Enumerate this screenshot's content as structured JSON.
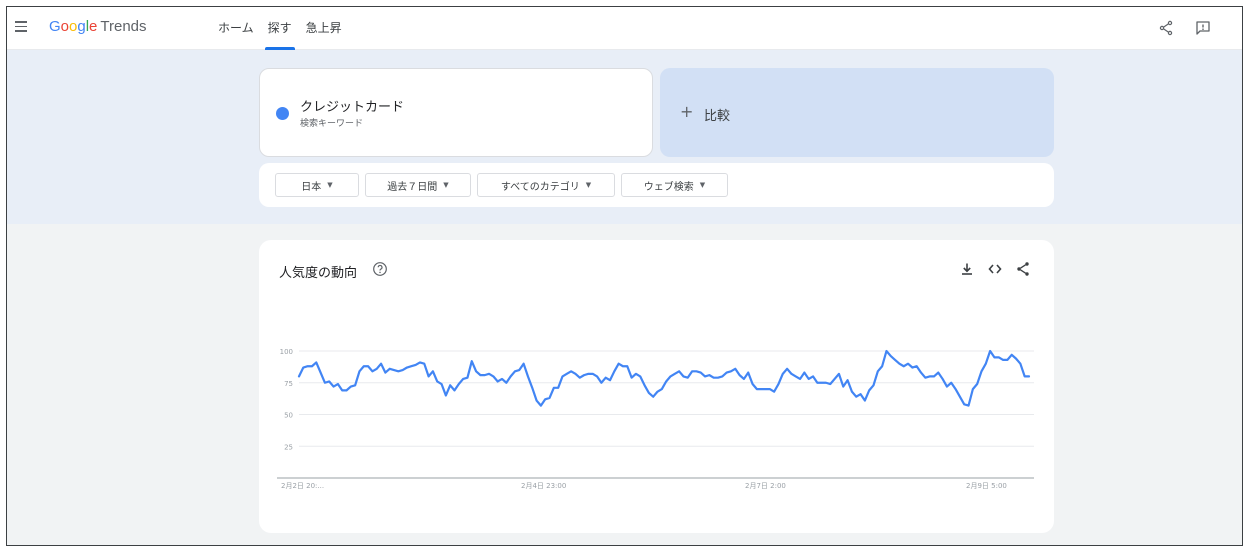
{
  "app": {
    "logo": {
      "g1": "G",
      "g2": "o",
      "g3": "o",
      "g4": "g",
      "g5": "l",
      "g6": "e",
      "trends": "Trends"
    }
  },
  "nav": {
    "items": [
      {
        "label": "ホーム",
        "active": false
      },
      {
        "label": "探す",
        "active": true
      },
      {
        "label": "急上昇",
        "active": false
      }
    ]
  },
  "header_icons": [
    "share-icon",
    "feedback-icon"
  ],
  "search_term": {
    "title": "クレジットカード",
    "subtitle": "検索キーワード",
    "color": "#4285f4"
  },
  "compare": {
    "plus": "+",
    "label": "比較"
  },
  "filters": {
    "region": "日本",
    "time": "過去７日間",
    "category": "すべてのカテゴリ",
    "property": "ウェブ検索"
  },
  "panel": {
    "title": "人気度の動向",
    "icons": [
      "download-icon",
      "embed-icon",
      "share-icon"
    ]
  },
  "chart_data": {
    "type": "line",
    "title": "",
    "xlabel": "",
    "ylabel": "",
    "ylim": [
      0,
      100
    ],
    "yticks": [
      "100",
      "75",
      "50",
      "25"
    ],
    "xticks": [
      "2月2日 20:...",
      "2月4日 23:00",
      "2月7日 2:00",
      "2月9日 5:00"
    ],
    "grid": true,
    "series": [
      {
        "color": "#4285f4",
        "values": [
          80,
          87,
          88,
          88,
          91,
          83,
          75,
          76,
          72,
          74,
          69,
          69,
          72,
          73,
          84,
          88,
          88,
          84,
          86,
          90,
          83,
          86,
          85,
          84,
          85,
          87,
          88,
          89,
          91,
          90,
          80,
          84,
          76,
          74,
          65,
          73,
          69,
          74,
          78,
          79,
          92,
          84,
          81,
          81,
          82,
          80,
          76,
          78,
          75,
          80,
          84,
          85,
          90,
          80,
          71,
          61,
          57,
          62,
          63,
          71,
          71,
          80,
          82,
          84,
          82,
          79,
          81,
          82,
          82,
          80,
          75,
          79,
          77,
          84,
          90,
          88,
          88,
          79,
          82,
          80,
          73,
          67,
          64,
          68,
          70,
          76,
          80,
          82,
          84,
          80,
          79,
          84,
          84,
          83,
          80,
          81,
          79,
          79,
          80,
          83,
          84,
          86,
          81,
          78,
          83,
          74,
          70,
          70,
          70,
          70,
          68,
          74,
          82,
          86,
          82,
          80,
          78,
          83,
          78,
          80,
          75,
          75,
          75,
          74,
          78,
          82,
          72,
          77,
          68,
          64,
          66,
          61,
          69,
          73,
          84,
          88,
          100,
          96,
          93,
          90,
          88,
          90,
          87,
          88,
          83,
          79,
          80,
          80,
          83,
          78,
          72,
          75,
          70,
          64,
          58,
          57,
          70,
          74,
          84,
          90,
          100,
          95,
          95,
          93,
          93,
          97,
          94,
          90,
          80,
          80
        ]
      }
    ]
  }
}
